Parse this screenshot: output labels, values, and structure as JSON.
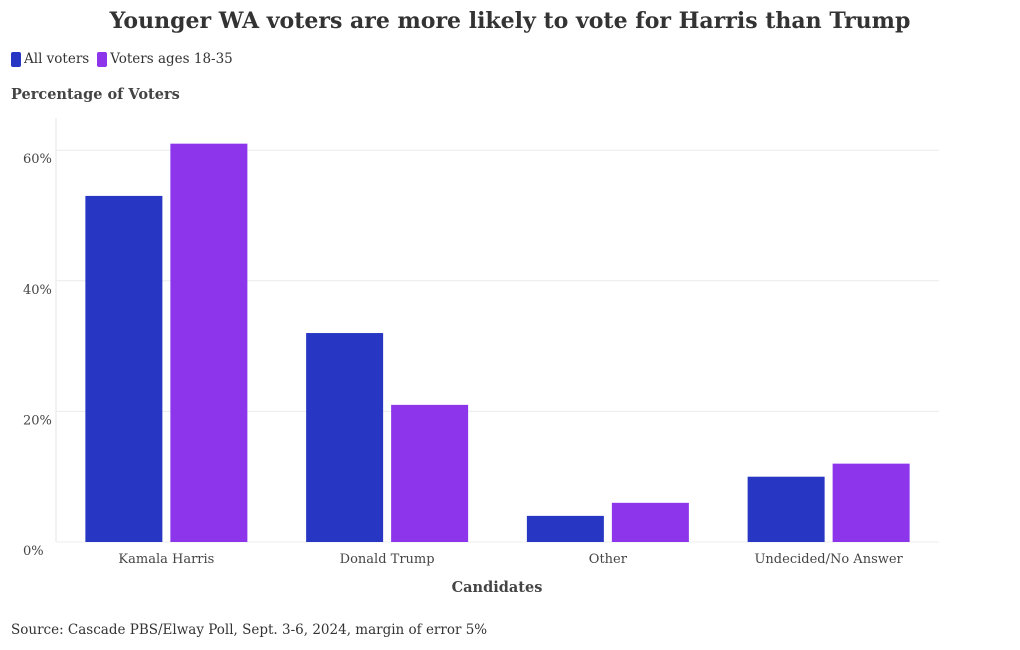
{
  "chart_data": {
    "type": "bar",
    "title": "Younger WA voters are more likely to vote for Harris than Trump",
    "categories": [
      "Kamala Harris",
      "Donald Trump",
      "Other",
      "Undecided/No Answer"
    ],
    "series": [
      {
        "name": "All voters",
        "color": "#2737c4",
        "values": [
          53,
          32,
          4,
          10
        ]
      },
      {
        "name": "Voters ages 18-35",
        "color": "#8c35ea",
        "values": [
          61,
          21,
          6,
          12
        ]
      }
    ],
    "ylabel": "Percentage of Voters",
    "xlabel": "Candidates",
    "ylim": [
      0,
      65
    ],
    "yticks": [
      0,
      20,
      40,
      60
    ],
    "ytick_labels": [
      "0%",
      "20%",
      "40%",
      "60%"
    ],
    "legend": "top-left",
    "grid": true,
    "source": "Source: Cascade PBS/Elway Poll, Sept. 3-6, 2024, margin of error 5%"
  }
}
